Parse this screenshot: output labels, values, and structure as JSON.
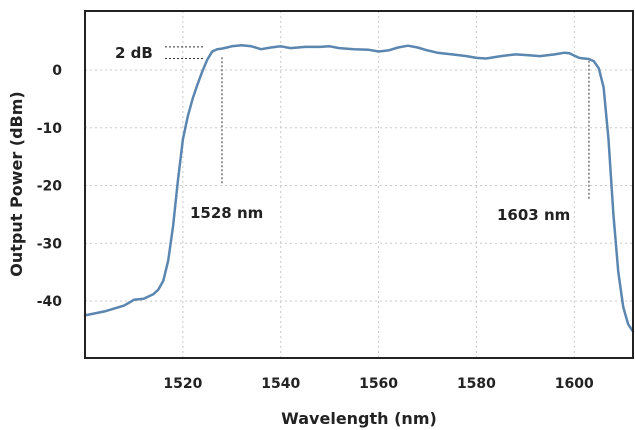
{
  "chart_data": {
    "type": "line",
    "title": "",
    "xlabel": "Wavelength (nm)",
    "ylabel": "Output Power (dBm)",
    "xlim": [
      1500,
      1612
    ],
    "ylim": [
      -50,
      10
    ],
    "xticks": [
      1520,
      1540,
      1560,
      1580,
      1600
    ],
    "yticks": [
      0,
      -10,
      -20,
      -30,
      -40
    ],
    "grid": true,
    "legend": "none",
    "series": [
      {
        "color": "#5a86b0",
        "points": [
          [
            1500,
            -42.5
          ],
          [
            1504,
            -41.8
          ],
          [
            1508,
            -40.8
          ],
          [
            1510,
            -39.8
          ],
          [
            1512,
            -39.6
          ],
          [
            1514,
            -38.8
          ],
          [
            1515,
            -38.0
          ],
          [
            1516,
            -36.5
          ],
          [
            1517,
            -33.0
          ],
          [
            1518,
            -27.0
          ],
          [
            1519,
            -19.0
          ],
          [
            1520,
            -12.0
          ],
          [
            1521,
            -8.0
          ],
          [
            1522,
            -5.0
          ],
          [
            1523,
            -2.5
          ],
          [
            1524,
            -0.2
          ],
          [
            1525,
            1.8
          ],
          [
            1526,
            3.2
          ],
          [
            1527,
            3.6
          ],
          [
            1528,
            3.7
          ],
          [
            1529,
            3.9
          ],
          [
            1530,
            4.1
          ],
          [
            1532,
            4.3
          ],
          [
            1534,
            4.1
          ],
          [
            1536,
            3.6
          ],
          [
            1538,
            3.9
          ],
          [
            1540,
            4.1
          ],
          [
            1542,
            3.8
          ],
          [
            1545,
            4.0
          ],
          [
            1548,
            4.0
          ],
          [
            1550,
            4.1
          ],
          [
            1552,
            3.8
          ],
          [
            1555,
            3.6
          ],
          [
            1558,
            3.5
          ],
          [
            1560,
            3.2
          ],
          [
            1562,
            3.4
          ],
          [
            1564,
            3.9
          ],
          [
            1566,
            4.2
          ],
          [
            1568,
            3.9
          ],
          [
            1570,
            3.4
          ],
          [
            1572,
            3.0
          ],
          [
            1575,
            2.7
          ],
          [
            1578,
            2.4
          ],
          [
            1580,
            2.1
          ],
          [
            1582,
            2.0
          ],
          [
            1585,
            2.4
          ],
          [
            1588,
            2.7
          ],
          [
            1590,
            2.6
          ],
          [
            1593,
            2.4
          ],
          [
            1596,
            2.7
          ],
          [
            1598,
            3.0
          ],
          [
            1599,
            2.9
          ],
          [
            1600,
            2.5
          ],
          [
            1601,
            2.1
          ],
          [
            1602,
            2.0
          ],
          [
            1603,
            1.9
          ],
          [
            1604,
            1.5
          ],
          [
            1605,
            0.3
          ],
          [
            1606,
            -3.0
          ],
          [
            1607,
            -12.0
          ],
          [
            1608,
            -25.0
          ],
          [
            1609,
            -35.0
          ],
          [
            1610,
            -41.0
          ],
          [
            1611,
            -44.0
          ],
          [
            1612,
            -45.3
          ]
        ]
      }
    ],
    "annotations": [
      {
        "text": "2 dB",
        "y_top": 4.0,
        "y_bottom": 2.0
      },
      {
        "text": "1528 nm",
        "x": 1528
      },
      {
        "text": "1603 nm",
        "x": 1603
      }
    ]
  }
}
